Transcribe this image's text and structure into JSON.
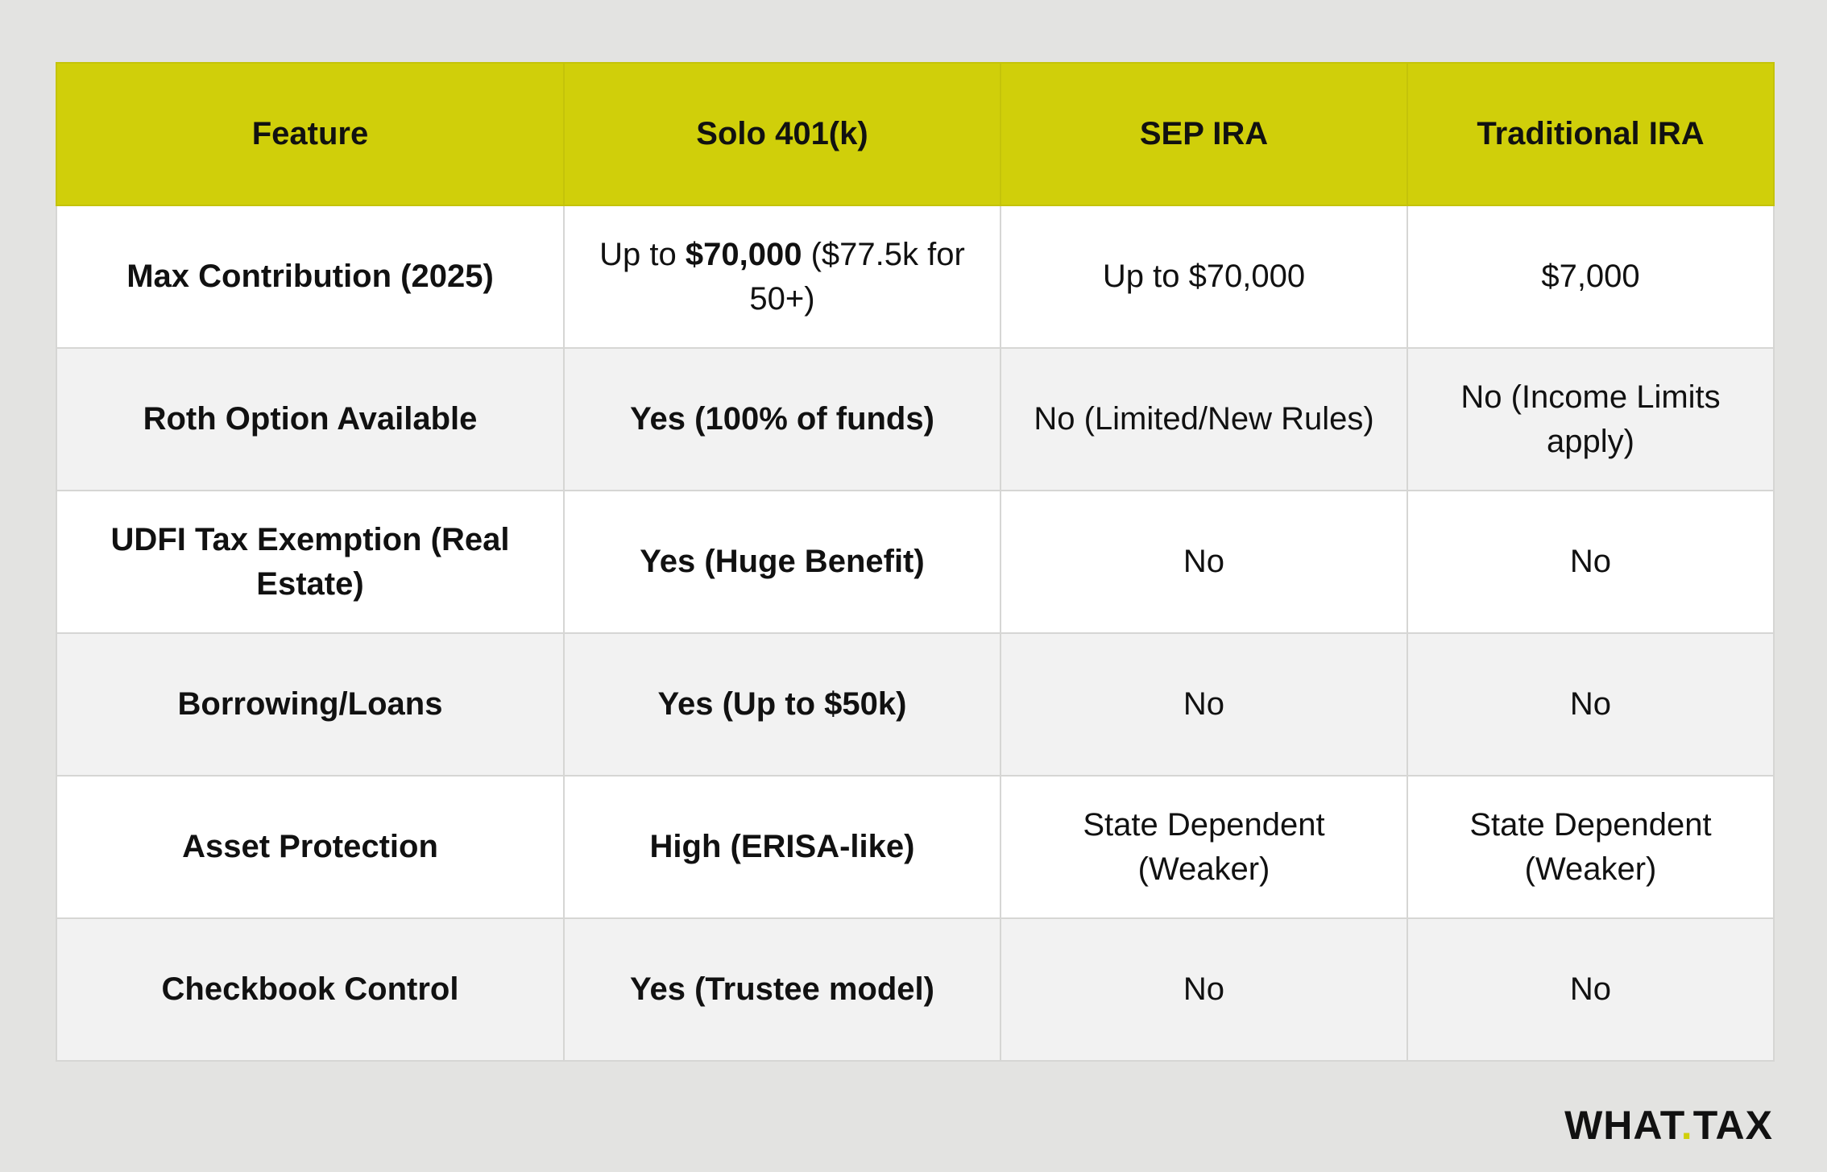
{
  "table": {
    "header": [
      "Feature",
      "Solo 401(k)",
      "SEP IRA",
      "Traditional IRA"
    ],
    "rows": [
      [
        "Max Contribution (2025)",
        [
          "Up to ",
          "$70,000",
          " ($77.5k for 50+)"
        ],
        "Up to $70,000",
        "$7,000"
      ],
      [
        "Roth Option Available",
        "Yes (100% of funds)",
        "No (Limited/New Rules)",
        "No (Income Limits apply)"
      ],
      [
        "UDFI Tax Exemption (Real Estate)",
        "Yes (Huge Benefit)",
        "No",
        "No"
      ],
      [
        "Borrowing/Loans",
        "Yes (Up to $50k)",
        "No",
        "No"
      ],
      [
        "Asset Protection",
        "High (ERISA-like)",
        "State Dependent (Weaker)",
        "State Dependent (Weaker)"
      ],
      [
        "Checkbook Control",
        "Yes (Trustee model)",
        "No",
        "No"
      ]
    ]
  },
  "logo": [
    "WHAT",
    ".",
    "TAX"
  ]
}
